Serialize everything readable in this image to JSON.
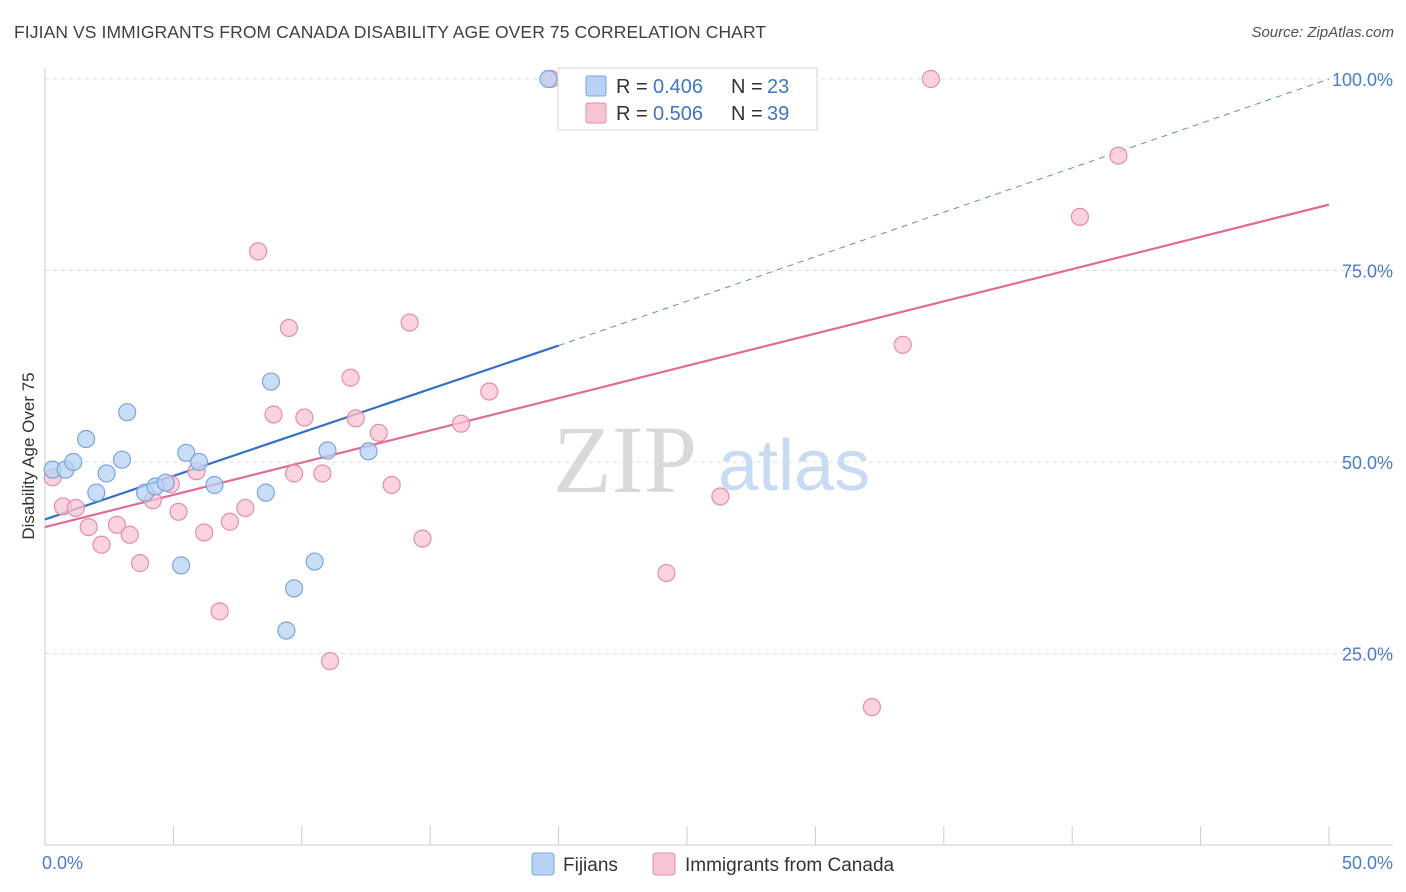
{
  "title": "FIJIAN VS IMMIGRANTS FROM CANADA DISABILITY AGE OVER 75 CORRELATION CHART",
  "source": "Source: ZipAtlas.com",
  "watermark": {
    "zip": "ZIP",
    "atlas": "atlas"
  },
  "colors": {
    "fijians_fill": "#b8d2f3",
    "fijians_stroke": "#7aa5dd",
    "fijians_line": "#3470c6",
    "canada_fill": "#f8c4d4",
    "canada_stroke": "#e48eaa",
    "canada_line": "#e06b94",
    "grid": "#dcdcdc",
    "tick_label": "#4a7cc8"
  },
  "legend": {
    "rows": [
      {
        "r_label": "R = ",
        "r_value": "0.406",
        "n_label": "N = ",
        "n_value": "23"
      },
      {
        "r_label": "R = ",
        "r_value": "0.506",
        "n_label": "N = ",
        "n_value": "39"
      }
    ]
  },
  "chart_data": {
    "type": "scatter",
    "title": "FIJIAN VS IMMIGRANTS FROM CANADA DISABILITY AGE OVER 75 CORRELATION CHART",
    "xlabel": "",
    "ylabel": "Disability Age Over 75",
    "xlim": [
      0,
      50
    ],
    "ylim": [
      0,
      100
    ],
    "x_tick_labels": [
      "0.0%",
      "50.0%"
    ],
    "y_ticks": [
      25,
      50,
      75,
      100
    ],
    "y_tick_labels": [
      "25.0%",
      "50.0%",
      "75.0%",
      "100.0%"
    ],
    "grid": true,
    "legend_position": "bottom",
    "series": [
      {
        "name": "Fijians",
        "points": [
          [
            0.3,
            49.0
          ],
          [
            0.8,
            49.0
          ],
          [
            1.1,
            50.0
          ],
          [
            1.6,
            53.0
          ],
          [
            2.0,
            46.0
          ],
          [
            2.4,
            48.5
          ],
          [
            3.0,
            50.3
          ],
          [
            3.2,
            56.5
          ],
          [
            3.9,
            46.0
          ],
          [
            4.3,
            46.8
          ],
          [
            4.7,
            47.3
          ],
          [
            5.3,
            36.5
          ],
          [
            5.5,
            51.2
          ],
          [
            6.0,
            50.0
          ],
          [
            6.6,
            47.0
          ],
          [
            8.6,
            46.0
          ],
          [
            8.8,
            60.5
          ],
          [
            9.4,
            28.0
          ],
          [
            9.7,
            33.5
          ],
          [
            10.5,
            37.0
          ],
          [
            11.0,
            51.5
          ],
          [
            12.6,
            51.4
          ],
          [
            19.6,
            100.0
          ]
        ],
        "fit": {
          "x": [
            0,
            20
          ],
          "y": [
            42.5,
            65.2
          ]
        },
        "fit_extension": {
          "x": [
            20,
            50
          ],
          "y": [
            65.2,
            100.0
          ]
        }
      },
      {
        "name": "Immigrants from Canada",
        "points": [
          [
            0.3,
            48.0
          ],
          [
            0.7,
            44.2
          ],
          [
            1.2,
            44.0
          ],
          [
            1.7,
            41.5
          ],
          [
            2.2,
            39.2
          ],
          [
            2.8,
            41.8
          ],
          [
            3.3,
            40.5
          ],
          [
            3.7,
            36.8
          ],
          [
            4.2,
            45.0
          ],
          [
            4.9,
            47.1
          ],
          [
            5.2,
            43.5
          ],
          [
            5.9,
            48.8
          ],
          [
            6.2,
            40.8
          ],
          [
            6.8,
            30.5
          ],
          [
            7.2,
            42.2
          ],
          [
            7.8,
            44.0
          ],
          [
            8.3,
            77.5
          ],
          [
            8.9,
            56.2
          ],
          [
            9.5,
            67.5
          ],
          [
            9.7,
            48.5
          ],
          [
            10.1,
            55.8
          ],
          [
            10.8,
            48.5
          ],
          [
            11.1,
            24.0
          ],
          [
            11.9,
            61.0
          ],
          [
            12.1,
            55.7
          ],
          [
            13.0,
            53.8
          ],
          [
            13.5,
            47.0
          ],
          [
            14.2,
            68.2
          ],
          [
            14.7,
            40.0
          ],
          [
            16.2,
            55.0
          ],
          [
            17.3,
            59.2
          ],
          [
            19.7,
            100.0
          ],
          [
            24.2,
            35.5
          ],
          [
            26.3,
            45.5
          ],
          [
            32.2,
            18.0
          ],
          [
            33.4,
            65.3
          ],
          [
            34.5,
            100.0
          ],
          [
            40.3,
            82.0
          ],
          [
            41.8,
            90.0
          ]
        ],
        "fit": {
          "x": [
            0,
            50
          ],
          "y": [
            41.5,
            83.6
          ]
        }
      }
    ]
  }
}
